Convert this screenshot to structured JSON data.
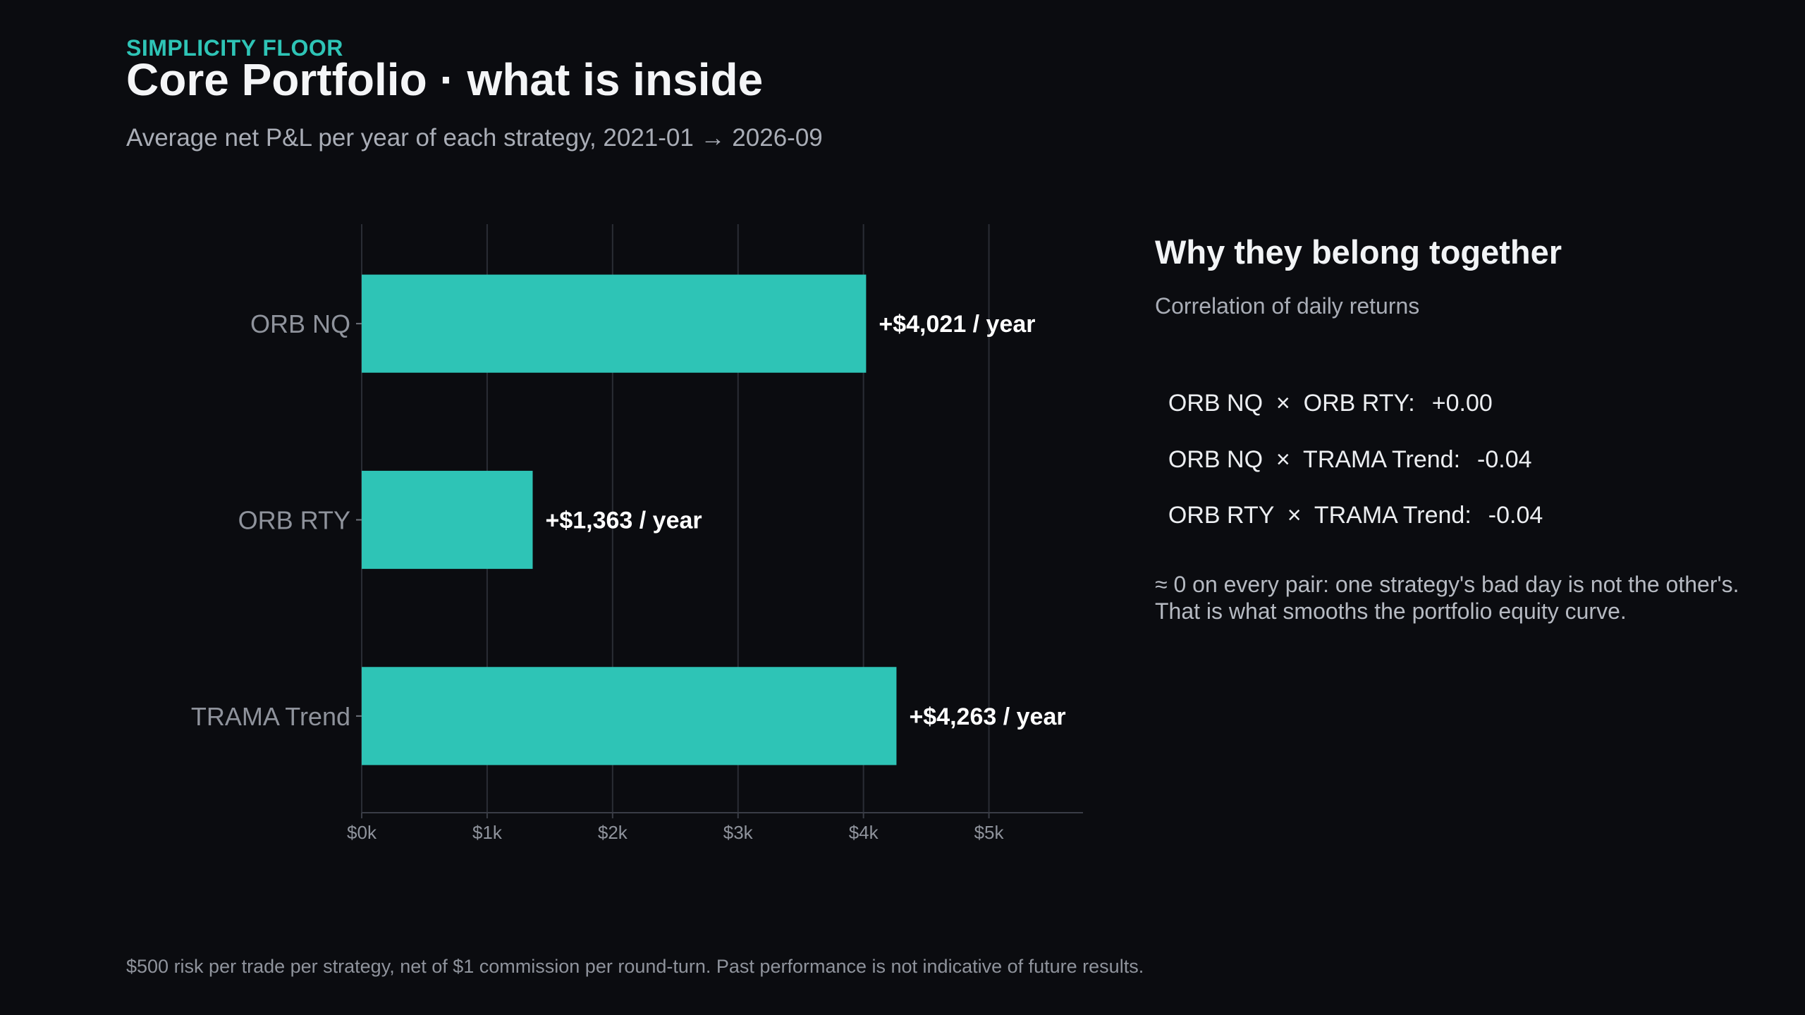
{
  "header": {
    "eyebrow": "SIMPLICITY FLOOR",
    "title": "Core Portfolio · what is inside",
    "subtitle": "Average net P&L per year of each strategy, 2021-01 → 2026-09"
  },
  "colors": {
    "background": "#0b0c10",
    "accent": "#2ec4b6",
    "bar": "#2ec4b6",
    "grid": "#2a2d35",
    "axis_text": "#8f939c"
  },
  "chart_data": {
    "type": "bar",
    "orientation": "horizontal",
    "title": "",
    "xlabel": "",
    "ylabel": "",
    "categories": [
      "ORB NQ",
      "ORB RTY",
      "TRAMA Trend"
    ],
    "values": [
      4021,
      1363,
      4263
    ],
    "data_labels": [
      "+$4,021 / year",
      "+$1,363 / year",
      "+$4,263 / year"
    ],
    "x_ticks": [
      0,
      1000,
      2000,
      3000,
      4000,
      5000
    ],
    "x_tick_labels": [
      "$0k",
      "$1k",
      "$2k",
      "$3k",
      "$4k",
      "$5k"
    ],
    "xlim": [
      0,
      5750
    ],
    "grid": true
  },
  "side": {
    "title": "Why they belong together",
    "subtitle": "Correlation of daily returns",
    "correlations": [
      {
        "pair": "ORB NQ  ×  ORB RTY:",
        "value": "+0.00"
      },
      {
        "pair": "ORB NQ  ×  TRAMA Trend:",
        "value": "-0.04"
      },
      {
        "pair": "ORB RTY  ×  TRAMA Trend:",
        "value": "-0.04"
      }
    ],
    "note_line1": "≈ 0 on every pair: one strategy's bad day is not the other's.",
    "note_line2": "That is what smooths the portfolio equity curve."
  },
  "footer": {
    "text": "$500 risk per trade per strategy, net of $1 commission per round-turn. Past performance is not indicative of future results."
  }
}
